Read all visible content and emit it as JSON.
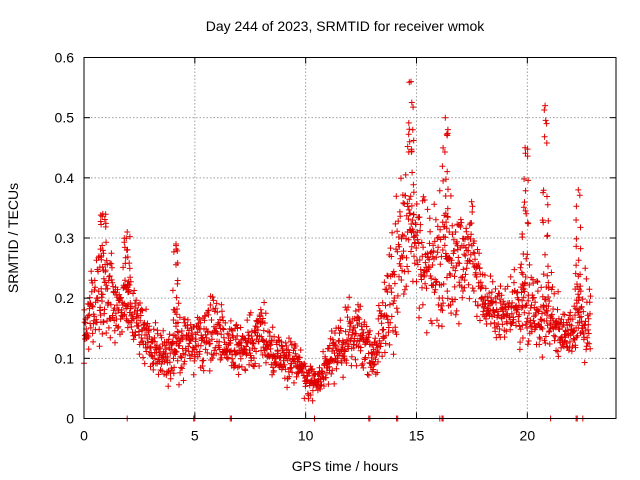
{
  "chart_data": {
    "type": "scatter",
    "title": "Day 244 of 2023, SRMTID for receiver wmok",
    "xlabel": "GPS time / hours",
    "ylabel": "SRMTID / TECUs",
    "xlim": [
      0,
      24
    ],
    "ylim": [
      0,
      0.6
    ],
    "xticks": [
      0,
      5,
      10,
      15,
      20
    ],
    "xtick_labels": [
      "0",
      "5",
      "10",
      "15",
      "20"
    ],
    "yticks": [
      0,
      0.1,
      0.2,
      0.3,
      0.4,
      0.5,
      0.6
    ],
    "ytick_labels": [
      "0",
      "0.1",
      "0.2",
      "0.3",
      "0.4",
      "0.5",
      "0.6"
    ],
    "grid": true,
    "marker": "+",
    "series_color": "#e00000",
    "series": [
      {
        "name": "SRMTID",
        "note": "dense point cloud; representative hourly envelope (x in hours, y in TECU)",
        "x": [
          0,
          0.5,
          1,
          1.5,
          2,
          2.5,
          3,
          3.5,
          4,
          4.5,
          5,
          5.5,
          6,
          6.5,
          7,
          7.5,
          8,
          8.5,
          9,
          9.5,
          10,
          10.5,
          11,
          11.5,
          12,
          12.5,
          13,
          13.5,
          14,
          14.5,
          15,
          15.5,
          16,
          16.5,
          17,
          17.5,
          18,
          18.5,
          19,
          19.5,
          20,
          20.5,
          21,
          21.5,
          22,
          22.5
        ],
        "y_center": [
          0.14,
          0.19,
          0.22,
          0.18,
          0.2,
          0.15,
          0.12,
          0.1,
          0.11,
          0.13,
          0.12,
          0.14,
          0.15,
          0.12,
          0.11,
          0.13,
          0.14,
          0.11,
          0.1,
          0.09,
          0.07,
          0.06,
          0.09,
          0.12,
          0.14,
          0.13,
          0.1,
          0.15,
          0.22,
          0.32,
          0.3,
          0.26,
          0.25,
          0.27,
          0.26,
          0.28,
          0.2,
          0.18,
          0.17,
          0.18,
          0.2,
          0.17,
          0.18,
          0.15,
          0.14,
          0.17
        ],
        "y_spread": [
          0.05,
          0.07,
          0.08,
          0.06,
          0.07,
          0.05,
          0.05,
          0.04,
          0.05,
          0.06,
          0.05,
          0.06,
          0.06,
          0.05,
          0.04,
          0.05,
          0.05,
          0.04,
          0.04,
          0.035,
          0.03,
          0.03,
          0.04,
          0.05,
          0.06,
          0.05,
          0.04,
          0.07,
          0.1,
          0.14,
          0.12,
          0.1,
          0.1,
          0.11,
          0.08,
          0.09,
          0.06,
          0.05,
          0.05,
          0.06,
          0.08,
          0.06,
          0.06,
          0.05,
          0.04,
          0.07
        ],
        "peaks": [
          {
            "x": 0.85,
            "y": 0.34
          },
          {
            "x": 1.95,
            "y": 0.31
          },
          {
            "x": 4.15,
            "y": 0.29
          },
          {
            "x": 14.75,
            "y": 0.56
          },
          {
            "x": 16.3,
            "y": 0.5
          },
          {
            "x": 19.9,
            "y": 0.45
          },
          {
            "x": 20.8,
            "y": 0.52
          },
          {
            "x": 22.3,
            "y": 0.38
          }
        ],
        "zero_x": [
          1.95,
          4.95,
          5.0,
          6.6,
          6.65,
          10.4,
          12.85,
          12.9,
          14.1,
          14.15,
          16.05,
          16.15,
          16.2,
          21.05,
          22.2,
          22.25,
          22.5
        ]
      }
    ]
  }
}
